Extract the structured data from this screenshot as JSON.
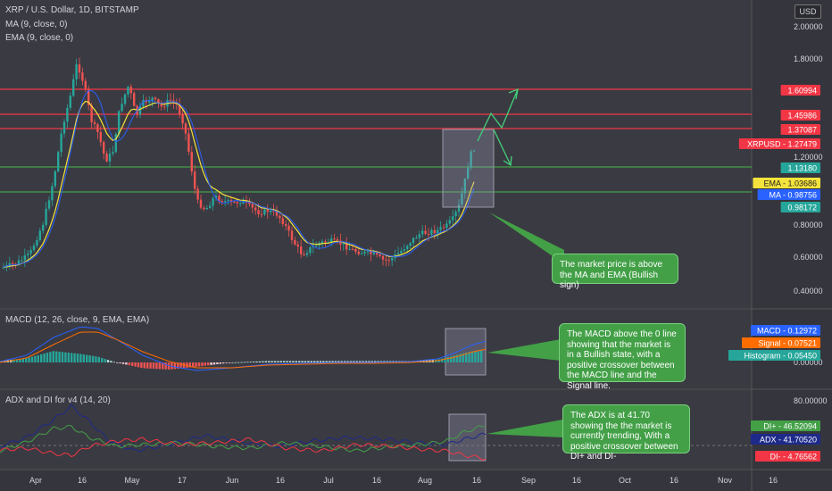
{
  "header": {
    "symbol_title": "XRP / U.S. Dollar, 1D, BITSTAMP",
    "ma_label": "MA (9, close, 0)",
    "ema_label": "EMA (9, close, 0)",
    "currency_button": "USD"
  },
  "panes": {
    "macd_title": "MACD (12, 26, close, 9, EMA, EMA)",
    "adx_title": "ADX and DI for v4 (14, 20)"
  },
  "price_axis": {
    "ticks": [
      "2.00000",
      "1.80000",
      "1.20000",
      "0.80000",
      "0.60000",
      "0.40000"
    ]
  },
  "macd_axis": {
    "ticks": [
      "0.00000"
    ]
  },
  "adx_axis": {
    "ticks": [
      "80.00000"
    ]
  },
  "price_labels": [
    {
      "text": "1.60994",
      "color": "#f23645"
    },
    {
      "text": "1.45986",
      "color": "#f23645"
    },
    {
      "text": "1.37087",
      "color": "#f23645"
    },
    {
      "text": "XRPUSD - 1.27479",
      "color": "#f23645"
    },
    {
      "text": "1.13180",
      "color": "#26a69a"
    },
    {
      "text": "EMA - 1.03686",
      "color": "#f5e33d",
      "dark_text": true
    },
    {
      "text": "MA - 0.98756",
      "color": "#2962ff"
    },
    {
      "text": "0.98172",
      "color": "#26a69a"
    }
  ],
  "macd_labels": [
    {
      "text": "MACD - 0.12972",
      "color": "#2962ff"
    },
    {
      "text": "Signal - 0.07521",
      "color": "#ff6d00"
    },
    {
      "text": "Histogram - 0.05450",
      "color": "#26a69a"
    }
  ],
  "adx_labels": [
    {
      "text": "DI+ - 46.52094",
      "color": "#43a047"
    },
    {
      "text": "ADX - 41.70520",
      "color": "#1e2a8a"
    },
    {
      "text": "DI- - 4.76562",
      "color": "#f23645"
    }
  ],
  "time_axis": {
    "labels": [
      "Apr",
      "16",
      "May",
      "17",
      "Jun",
      "16",
      "Jul",
      "16",
      "Aug",
      "16",
      "Sep",
      "16",
      "Oct",
      "16",
      "Nov",
      "16"
    ]
  },
  "annotations": {
    "price_note": "The market price is above the MA and EMA (Bullish sign)",
    "macd_note": "The MACD above the 0 line showing that the market is in a Bullish state, with a positive crossover between the MACD line and the Signal line.",
    "adx_note": "The ADX is at 41.70 showing the the market is currently trending, With a positive crossover between DI+ and DI-"
  },
  "colors": {
    "bull": "#26a69a",
    "bear": "#ef5350",
    "ma": "#2962ff",
    "ema": "#f5e33d"
  }
}
